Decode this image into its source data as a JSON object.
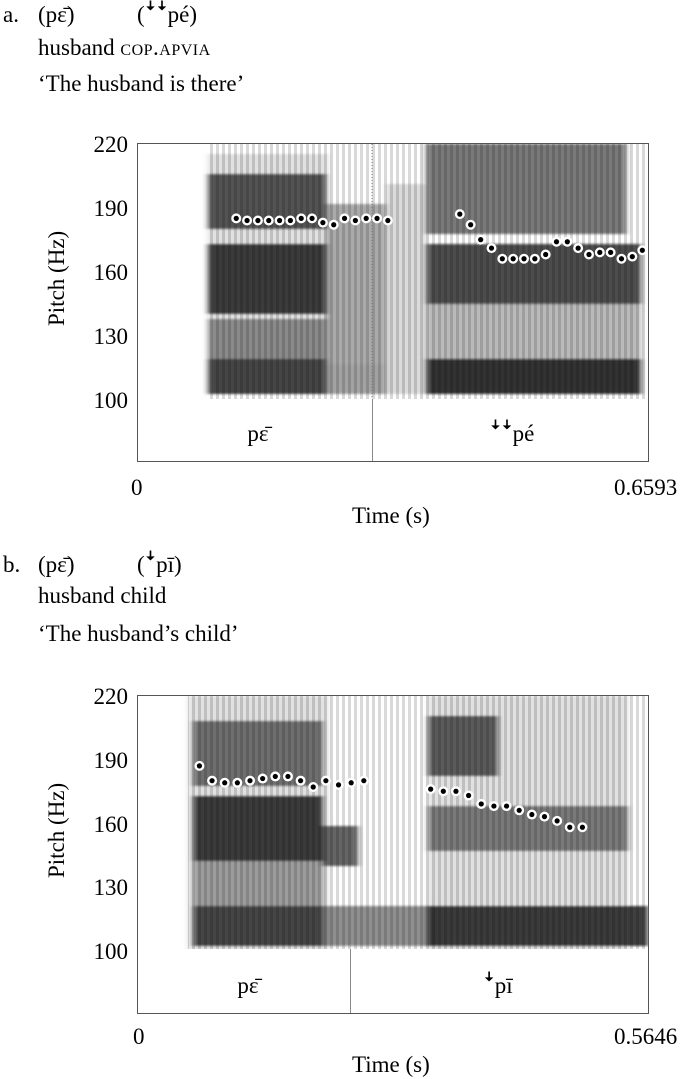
{
  "examples": [
    {
      "letter": "a.",
      "word1": "(pɛ̄)",
      "word2": "(ꜜꜜpé)",
      "gloss_plain": "husband",
      "gloss_sc": "cop.apvia",
      "translation": "‘The husband is there’",
      "ylabel": "Pitch (Hz)",
      "xlabel": "Time (s)",
      "x_start": "0",
      "x_end": "0.6593",
      "tier_labels": [
        "pɛ̄",
        "ꜜꜜpé"
      ],
      "chart_data": {
        "type": "scatter",
        "ylim": [
          100,
          220
        ],
        "xlim": [
          0,
          0.6593
        ],
        "yticks": [
          "220",
          "190",
          "160",
          "130",
          "100"
        ],
        "boundary": 0.3406,
        "points": [
          [
            0.127,
            185
          ],
          [
            0.141,
            184
          ],
          [
            0.155,
            184
          ],
          [
            0.169,
            184
          ],
          [
            0.183,
            184
          ],
          [
            0.197,
            184
          ],
          [
            0.211,
            185
          ],
          [
            0.225,
            185
          ],
          [
            0.239,
            183
          ],
          [
            0.253,
            182
          ],
          [
            0.267,
            185
          ],
          [
            0.281,
            184
          ],
          [
            0.295,
            185
          ],
          [
            0.309,
            185
          ],
          [
            0.323,
            184
          ],
          [
            0.416,
            187
          ],
          [
            0.43,
            182
          ],
          [
            0.443,
            175
          ],
          [
            0.457,
            171
          ],
          [
            0.471,
            166
          ],
          [
            0.485,
            166
          ],
          [
            0.499,
            166
          ],
          [
            0.513,
            166
          ],
          [
            0.527,
            168
          ],
          [
            0.541,
            174
          ],
          [
            0.555,
            174
          ],
          [
            0.569,
            171
          ],
          [
            0.583,
            168
          ],
          [
            0.597,
            169
          ],
          [
            0.611,
            169
          ],
          [
            0.625,
            166
          ],
          [
            0.639,
            167
          ],
          [
            0.652,
            170
          ]
        ]
      }
    },
    {
      "letter": "b.",
      "word1": "(pɛ̄)",
      "word2": "(ꜜpī)",
      "gloss_plain": "husband child",
      "gloss_sc": "",
      "translation": "‘The husband’s child’",
      "ylabel": "Pitch (Hz)",
      "xlabel": "Time (s)",
      "x_start": "0",
      "x_end": "0.5646",
      "tier_labels": [
        "pɛ̄",
        "ꜜpī"
      ],
      "chart_data": {
        "type": "scatter",
        "ylim": [
          100,
          220
        ],
        "xlim": [
          0,
          0.5646
        ],
        "yticks": [
          "220",
          "190",
          "160",
          "130",
          "100"
        ],
        "boundary": 0.239,
        "points": [
          [
            0.068,
            187
          ],
          [
            0.082,
            180
          ],
          [
            0.096,
            179
          ],
          [
            0.11,
            179
          ],
          [
            0.124,
            180
          ],
          [
            0.138,
            181
          ],
          [
            0.152,
            182
          ],
          [
            0.166,
            182
          ],
          [
            0.18,
            180
          ],
          [
            0.194,
            177
          ],
          [
            0.208,
            180
          ],
          [
            0.222,
            178
          ],
          [
            0.236,
            179
          ],
          [
            0.25,
            180
          ],
          [
            0.324,
            176
          ],
          [
            0.338,
            175
          ],
          [
            0.352,
            175
          ],
          [
            0.366,
            173
          ],
          [
            0.38,
            169
          ],
          [
            0.394,
            168
          ],
          [
            0.408,
            168
          ],
          [
            0.422,
            166
          ],
          [
            0.436,
            164
          ],
          [
            0.45,
            163
          ],
          [
            0.464,
            161
          ],
          [
            0.478,
            158
          ],
          [
            0.492,
            158
          ]
        ]
      }
    }
  ]
}
